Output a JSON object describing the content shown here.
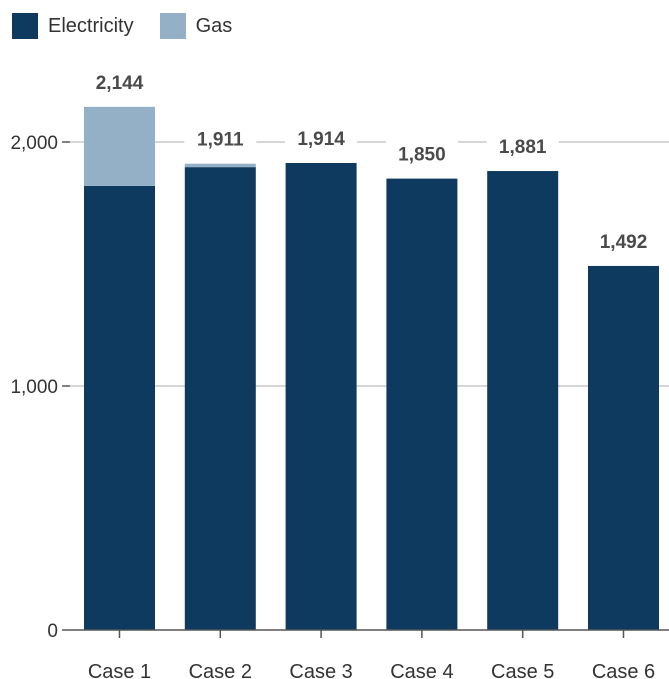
{
  "chart_data": {
    "type": "bar",
    "stacked": true,
    "categories": [
      "Case 1",
      "Case 2",
      "Case 3",
      "Case 4",
      "Case 5",
      "Case 6"
    ],
    "series": [
      {
        "name": "Electricity",
        "color": "#0f3a60",
        "values": [
          1820,
          1897,
          1914,
          1850,
          1881,
          1492
        ]
      },
      {
        "name": "Gas",
        "color": "#93b0c6",
        "values": [
          324,
          14,
          0,
          0,
          0,
          0
        ]
      }
    ],
    "totals": [
      2144,
      1911,
      1914,
      1850,
      1881,
      1492
    ],
    "total_labels": [
      "2,144",
      "1,911",
      "1,914",
      "1,850",
      "1,881",
      "1,492"
    ],
    "yticks": [
      0,
      1000,
      2000
    ],
    "ytick_labels": [
      "0",
      "1,000",
      "2,000"
    ],
    "ylim": [
      0,
      2200
    ],
    "grid": true,
    "legend_position": "top-left"
  }
}
